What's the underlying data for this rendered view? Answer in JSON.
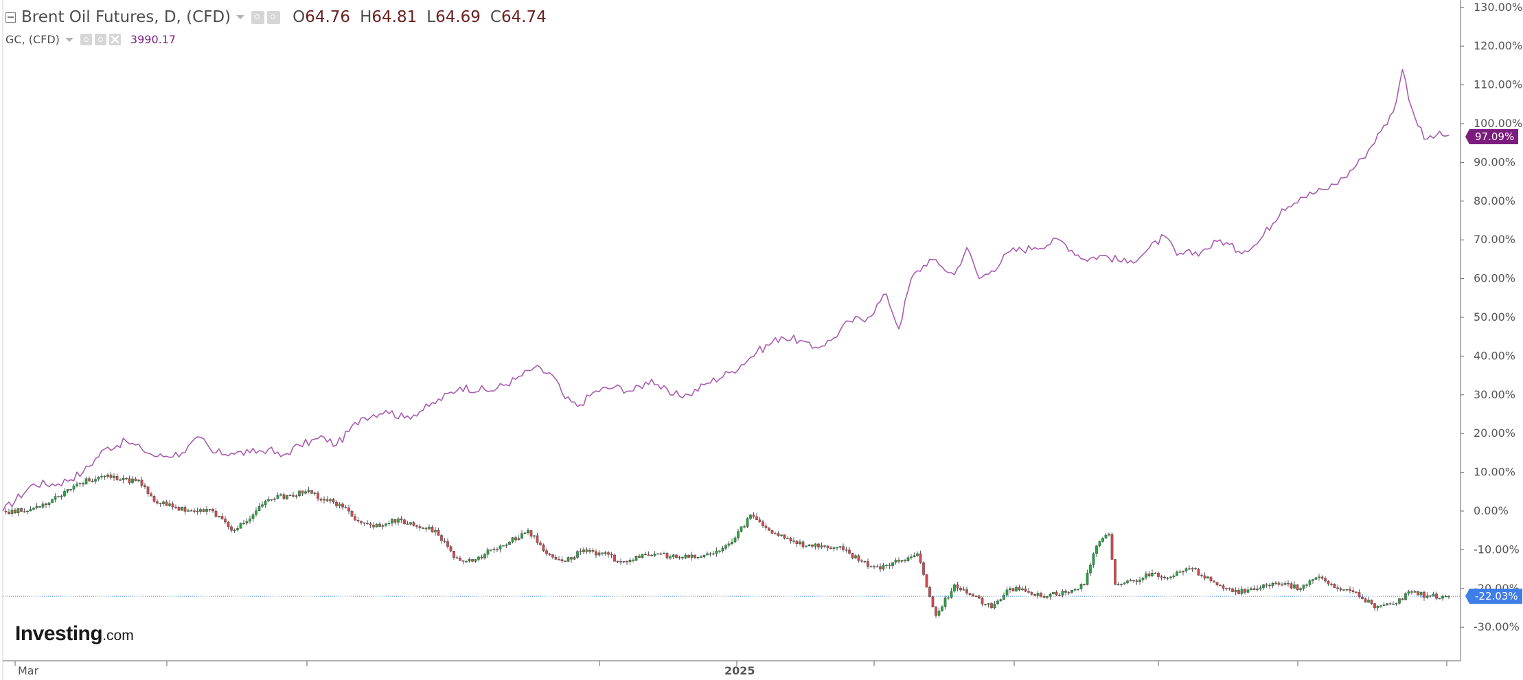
{
  "legend": {
    "primary": {
      "title": "Brent Oil Futures, D, (CFD)",
      "open_label": "O",
      "open": "64.76",
      "high_label": "H",
      "high": "64.81",
      "low_label": "L",
      "low": "64.69",
      "close_label": "C",
      "close": "64.74"
    },
    "secondary": {
      "title": "GC, (CFD)",
      "value": "3990.17"
    }
  },
  "badges": {
    "gc_last": "97.09%",
    "brent_last": "-22.03%"
  },
  "logo": {
    "main": "Investing",
    "tld": ".com"
  },
  "colors": {
    "gc_line": "#a95cb0",
    "up_candle": "#26a640",
    "down_candle": "#d8484e",
    "price_line": "#3f7de8",
    "gc_badge": "#7b1c7f"
  },
  "chart_data": {
    "type": "line",
    "y_unit": "percent change",
    "ylim": [
      -35,
      130
    ],
    "y_ticks": [
      -30,
      -20,
      -10,
      0,
      10,
      20,
      30,
      40,
      50,
      60,
      70,
      80,
      90,
      100,
      110,
      120,
      130
    ],
    "y_tick_labels": [
      "-30.00%",
      "-20.00%",
      "-10.00%",
      "0.00%",
      "10.00%",
      "20.00%",
      "30.00%",
      "40.00%",
      "50.00%",
      "60.00%",
      "70.00%",
      "80.00%",
      "90.00%",
      "100.00%",
      "110.00%",
      "120.00%",
      "130.00%"
    ],
    "x_labels": [
      "Mar",
      "2025"
    ],
    "grid": false,
    "series": [
      {
        "name": "GC, (CFD)",
        "style": "line",
        "points": [
          [
            0,
            0
          ],
          [
            10,
            7
          ],
          [
            18,
            7
          ],
          [
            26,
            10
          ],
          [
            33,
            16
          ],
          [
            40,
            18
          ],
          [
            45,
            16
          ],
          [
            50,
            14
          ],
          [
            58,
            15
          ],
          [
            64,
            19
          ],
          [
            68,
            15
          ],
          [
            74,
            15
          ],
          [
            80,
            15
          ],
          [
            86,
            16
          ],
          [
            90,
            14
          ],
          [
            96,
            17
          ],
          [
            104,
            19
          ],
          [
            108,
            17
          ],
          [
            116,
            24
          ],
          [
            124,
            26
          ],
          [
            130,
            24
          ],
          [
            138,
            27
          ],
          [
            148,
            32
          ],
          [
            158,
            31
          ],
          [
            166,
            34
          ],
          [
            172,
            37
          ],
          [
            178,
            35
          ],
          [
            182,
            29
          ],
          [
            186,
            27
          ],
          [
            192,
            31
          ],
          [
            198,
            32
          ],
          [
            204,
            31
          ],
          [
            210,
            34
          ],
          [
            216,
            30
          ],
          [
            222,
            30
          ],
          [
            228,
            33
          ],
          [
            236,
            36
          ],
          [
            244,
            41
          ],
          [
            252,
            45
          ],
          [
            258,
            44
          ],
          [
            262,
            42
          ],
          [
            268,
            44
          ],
          [
            274,
            49
          ],
          [
            280,
            50
          ],
          [
            286,
            56
          ],
          [
            290,
            47
          ],
          [
            294,
            60
          ],
          [
            300,
            65
          ],
          [
            304,
            63
          ],
          [
            308,
            61
          ],
          [
            312,
            68
          ],
          [
            316,
            60
          ],
          [
            320,
            62
          ],
          [
            326,
            67
          ],
          [
            334,
            68
          ],
          [
            342,
            70
          ],
          [
            350,
            65
          ],
          [
            356,
            66
          ],
          [
            364,
            64
          ],
          [
            370,
            67
          ],
          [
            376,
            71
          ],
          [
            380,
            66
          ],
          [
            388,
            67
          ],
          [
            394,
            70
          ],
          [
            400,
            67
          ],
          [
            406,
            69
          ],
          [
            414,
            78
          ],
          [
            420,
            81
          ],
          [
            428,
            83
          ],
          [
            434,
            86
          ],
          [
            440,
            91
          ],
          [
            446,
            98
          ],
          [
            450,
            103
          ],
          [
            453,
            114
          ],
          [
            456,
            104
          ],
          [
            460,
            96
          ],
          [
            464,
            97
          ],
          [
            468,
            97
          ]
        ]
      },
      {
        "name": "Brent Oil Futures, D, (CFD)",
        "style": "candlestick",
        "points": [
          [
            0,
            0
          ],
          [
            8,
            0
          ],
          [
            16,
            3
          ],
          [
            24,
            7
          ],
          [
            32,
            9
          ],
          [
            38,
            8
          ],
          [
            44,
            8
          ],
          [
            50,
            2
          ],
          [
            56,
            1
          ],
          [
            62,
            0
          ],
          [
            68,
            0
          ],
          [
            74,
            -5
          ],
          [
            80,
            -2
          ],
          [
            86,
            3
          ],
          [
            92,
            4
          ],
          [
            98,
            5
          ],
          [
            104,
            3
          ],
          [
            110,
            1
          ],
          [
            116,
            -3
          ],
          [
            122,
            -4
          ],
          [
            128,
            -2
          ],
          [
            134,
            -4
          ],
          [
            140,
            -5
          ],
          [
            146,
            -12
          ],
          [
            152,
            -13
          ],
          [
            158,
            -10
          ],
          [
            164,
            -8
          ],
          [
            170,
            -5
          ],
          [
            176,
            -11
          ],
          [
            182,
            -13
          ],
          [
            188,
            -10
          ],
          [
            194,
            -11
          ],
          [
            200,
            -13
          ],
          [
            206,
            -12
          ],
          [
            212,
            -11
          ],
          [
            218,
            -12
          ],
          [
            224,
            -12
          ],
          [
            230,
            -11
          ],
          [
            236,
            -8
          ],
          [
            242,
            -1
          ],
          [
            248,
            -5
          ],
          [
            254,
            -7
          ],
          [
            260,
            -9
          ],
          [
            266,
            -9
          ],
          [
            272,
            -10
          ],
          [
            278,
            -13
          ],
          [
            284,
            -15
          ],
          [
            290,
            -13
          ],
          [
            296,
            -11
          ],
          [
            302,
            -27
          ],
          [
            308,
            -19
          ],
          [
            314,
            -22
          ],
          [
            320,
            -25
          ],
          [
            326,
            -20
          ],
          [
            332,
            -21
          ],
          [
            338,
            -22
          ],
          [
            344,
            -21
          ],
          [
            350,
            -19
          ],
          [
            354,
            -9
          ],
          [
            358,
            -6
          ],
          [
            360,
            -19
          ],
          [
            366,
            -18
          ],
          [
            372,
            -16
          ],
          [
            378,
            -17
          ],
          [
            384,
            -15
          ],
          [
            390,
            -17
          ],
          [
            396,
            -20
          ],
          [
            402,
            -21
          ],
          [
            408,
            -19
          ],
          [
            414,
            -19
          ],
          [
            420,
            -20
          ],
          [
            426,
            -17
          ],
          [
            432,
            -20
          ],
          [
            438,
            -21
          ],
          [
            444,
            -25
          ],
          [
            450,
            -24
          ],
          [
            456,
            -21
          ],
          [
            462,
            -22
          ],
          [
            468,
            -22
          ]
        ]
      }
    ]
  }
}
